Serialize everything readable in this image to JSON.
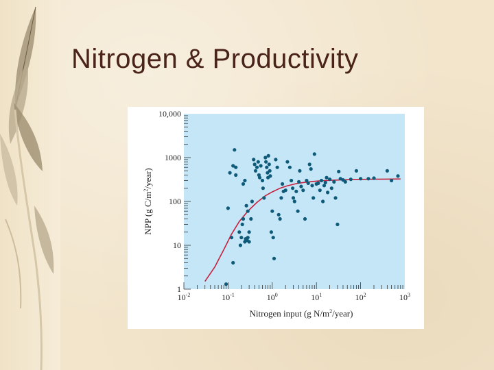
{
  "slide": {
    "title": "Nitrogen & Productivity"
  },
  "colors": {
    "plot_background": "#c4e6f7",
    "points": "#0e5a78",
    "fit_curve": "#c8203c"
  },
  "chart_data": {
    "type": "scatter",
    "xlabel_prefix": "Nitrogen input (g N/m",
    "xlabel_sup": "2",
    "xlabel_suffix": "/year)",
    "ylabel_prefix": "NPP (g C/m",
    "ylabel_sup": "2",
    "ylabel_suffix": "/year)",
    "x_scale": "log",
    "y_scale": "log",
    "xlim": [
      0.01,
      1000
    ],
    "ylim": [
      1,
      10000
    ],
    "x_ticks": [
      {
        "base": "10",
        "exp": "-2",
        "value": 0.01
      },
      {
        "base": "10",
        "exp": "-1",
        "value": 0.1
      },
      {
        "base": "10",
        "exp": "0",
        "value": 1
      },
      {
        "base": "10",
        "exp": "1",
        "value": 10
      },
      {
        "base": "10",
        "exp": "2",
        "value": 100
      },
      {
        "base": "10",
        "exp": "3",
        "value": 1000
      }
    ],
    "y_ticks": [
      {
        "label": "1",
        "value": 1
      },
      {
        "label": "10",
        "value": 10
      },
      {
        "label": "100",
        "value": 100
      },
      {
        "label": "1000",
        "value": 1000
      },
      {
        "label": "10,000",
        "value": 10000
      }
    ],
    "grid": false,
    "points": [
      [
        0.09,
        1.3
      ],
      [
        0.1,
        70
      ],
      [
        0.12,
        15
      ],
      [
        0.13,
        4
      ],
      [
        0.14,
        1500
      ],
      [
        0.13,
        650
      ],
      [
        0.15,
        600
      ],
      [
        0.15,
        400
      ],
      [
        0.11,
        450
      ],
      [
        0.18,
        20
      ],
      [
        0.19,
        10
      ],
      [
        0.2,
        15
      ],
      [
        0.21,
        30
      ],
      [
        0.22,
        40
      ],
      [
        0.24,
        12
      ],
      [
        0.25,
        14
      ],
      [
        0.27,
        13
      ],
      [
        0.28,
        15
      ],
      [
        0.3,
        12
      ],
      [
        0.22,
        250
      ],
      [
        0.24,
        300
      ],
      [
        0.26,
        80
      ],
      [
        0.28,
        60
      ],
      [
        0.3,
        20
      ],
      [
        0.33,
        40
      ],
      [
        0.35,
        100
      ],
      [
        0.38,
        900
      ],
      [
        0.4,
        700
      ],
      [
        0.42,
        500
      ],
      [
        0.45,
        600
      ],
      [
        0.48,
        800
      ],
      [
        0.5,
        400
      ],
      [
        0.52,
        350
      ],
      [
        0.55,
        650
      ],
      [
        0.6,
        300
      ],
      [
        0.62,
        200
      ],
      [
        0.65,
        120
      ],
      [
        0.7,
        1000
      ],
      [
        0.72,
        800
      ],
      [
        0.75,
        600
      ],
      [
        0.78,
        450
      ],
      [
        0.8,
        350
      ],
      [
        0.82,
        1100
      ],
      [
        0.85,
        700
      ],
      [
        0.88,
        500
      ],
      [
        0.9,
        380
      ],
      [
        0.95,
        20
      ],
      [
        1.0,
        60
      ],
      [
        1.05,
        15
      ],
      [
        1.1,
        5
      ],
      [
        1.2,
        900
      ],
      [
        1.3,
        600
      ],
      [
        1.4,
        50
      ],
      [
        1.5,
        40
      ],
      [
        1.6,
        120
      ],
      [
        1.7,
        250
      ],
      [
        1.8,
        170
      ],
      [
        2.0,
        180
      ],
      [
        2.2,
        800
      ],
      [
        2.5,
        600
      ],
      [
        2.7,
        300
      ],
      [
        2.9,
        200
      ],
      [
        3.0,
        120
      ],
      [
        3.2,
        100
      ],
      [
        3.5,
        170
      ],
      [
        3.8,
        60
      ],
      [
        4.0,
        280
      ],
      [
        4.2,
        500
      ],
      [
        4.5,
        220
      ],
      [
        5.0,
        180
      ],
      [
        5.5,
        40
      ],
      [
        6.0,
        300
      ],
      [
        6.5,
        260
      ],
      [
        7.0,
        700
      ],
      [
        7.5,
        550
      ],
      [
        8.0,
        230
      ],
      [
        8.5,
        120
      ],
      [
        9.0,
        1200
      ],
      [
        10,
        250
      ],
      [
        11,
        260
      ],
      [
        12,
        180
      ],
      [
        13,
        300
      ],
      [
        14,
        100
      ],
      [
        15,
        230
      ],
      [
        16,
        270
      ],
      [
        17,
        350
      ],
      [
        18,
        160
      ],
      [
        20,
        320
      ],
      [
        22,
        200
      ],
      [
        25,
        280
      ],
      [
        27,
        120
      ],
      [
        30,
        30
      ],
      [
        32,
        480
      ],
      [
        35,
        330
      ],
      [
        40,
        310
      ],
      [
        45,
        280
      ],
      [
        60,
        320
      ],
      [
        80,
        500
      ],
      [
        100,
        330
      ],
      [
        150,
        330
      ],
      [
        200,
        340
      ],
      [
        400,
        500
      ],
      [
        500,
        300
      ],
      [
        700,
        380
      ]
    ],
    "fit_curve": [
      [
        0.03,
        1.5
      ],
      [
        0.05,
        3.2
      ],
      [
        0.08,
        8
      ],
      [
        0.12,
        18
      ],
      [
        0.18,
        35
      ],
      [
        0.28,
        60
      ],
      [
        0.45,
        95
      ],
      [
        0.7,
        135
      ],
      [
        1.0,
        165
      ],
      [
        1.5,
        200
      ],
      [
        2.2,
        228
      ],
      [
        3.5,
        255
      ],
      [
        5,
        270
      ],
      [
        8,
        285
      ],
      [
        12,
        295
      ],
      [
        20,
        303
      ],
      [
        35,
        310
      ],
      [
        60,
        315
      ],
      [
        100,
        318
      ],
      [
        200,
        321
      ],
      [
        400,
        323
      ],
      [
        800,
        325
      ]
    ]
  }
}
